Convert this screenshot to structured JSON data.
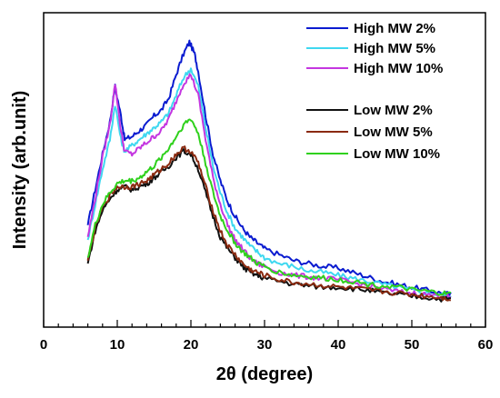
{
  "chart_data": {
    "type": "line",
    "xlabel": "2θ (degree)",
    "ylabel": "Intensity (arb.unit)",
    "xlim": [
      0,
      60
    ],
    "ylim": [
      0,
      1.0
    ],
    "xticks": [
      0,
      10,
      20,
      30,
      40,
      50,
      60
    ],
    "yticks_shown": false,
    "grid": false,
    "legend_position": "top-right",
    "series": [
      {
        "name": "High MW 2%",
        "color": "#0a1bd0",
        "x": [
          6,
          7,
          8,
          9,
          9.7,
          10.5,
          11,
          12,
          13,
          14,
          15,
          16,
          17,
          18,
          19,
          19.8,
          20.5,
          21,
          22,
          23,
          24,
          25,
          26,
          27,
          28,
          29,
          30,
          32,
          34,
          36,
          38,
          40,
          42,
          44,
          46,
          48,
          50,
          52,
          54,
          55.3
        ],
        "y": [
          0.33,
          0.45,
          0.57,
          0.68,
          0.8,
          0.7,
          0.62,
          0.63,
          0.65,
          0.67,
          0.7,
          0.72,
          0.76,
          0.84,
          0.91,
          0.95,
          0.91,
          0.85,
          0.7,
          0.57,
          0.48,
          0.41,
          0.36,
          0.32,
          0.29,
          0.27,
          0.25,
          0.23,
          0.21,
          0.2,
          0.19,
          0.185,
          0.17,
          0.155,
          0.14,
          0.13,
          0.12,
          0.11,
          0.1,
          0.095
        ]
      },
      {
        "name": "High MW 5%",
        "color": "#3fd8f0",
        "x": [
          6,
          7,
          8,
          9,
          9.7,
          10.5,
          11,
          12,
          13,
          14,
          15,
          16,
          17,
          18,
          19,
          20,
          21,
          22,
          23,
          24,
          25,
          26,
          27,
          28,
          29,
          30,
          32,
          34,
          36,
          38,
          40,
          42,
          44,
          46,
          48,
          50,
          52,
          54,
          55.3
        ],
        "y": [
          0.28,
          0.4,
          0.52,
          0.62,
          0.74,
          0.62,
          0.58,
          0.6,
          0.62,
          0.64,
          0.66,
          0.68,
          0.71,
          0.77,
          0.83,
          0.86,
          0.8,
          0.66,
          0.53,
          0.44,
          0.37,
          0.32,
          0.29,
          0.26,
          0.24,
          0.22,
          0.2,
          0.19,
          0.175,
          0.17,
          0.16,
          0.15,
          0.14,
          0.13,
          0.12,
          0.11,
          0.1,
          0.095,
          0.09
        ]
      },
      {
        "name": "High MW 10%",
        "color": "#c436e0",
        "x": [
          6,
          7,
          8,
          9,
          9.7,
          10.5,
          11,
          12,
          13,
          14,
          15,
          16,
          17,
          18,
          19,
          20,
          21,
          22,
          23,
          24,
          25,
          26,
          27,
          28,
          29,
          30,
          32,
          34,
          36,
          38,
          40,
          42,
          44,
          46,
          48,
          50,
          52,
          54,
          55.3
        ],
        "y": [
          0.29,
          0.42,
          0.56,
          0.67,
          0.81,
          0.65,
          0.58,
          0.57,
          0.59,
          0.61,
          0.63,
          0.65,
          0.69,
          0.75,
          0.81,
          0.84,
          0.77,
          0.62,
          0.49,
          0.4,
          0.33,
          0.28,
          0.25,
          0.22,
          0.2,
          0.19,
          0.17,
          0.16,
          0.155,
          0.15,
          0.145,
          0.135,
          0.125,
          0.115,
          0.105,
          0.1,
          0.095,
          0.09,
          0.085
        ]
      },
      {
        "name": "Low MW 2%",
        "color": "#111111",
        "x": [
          6,
          7,
          8,
          9,
          10,
          11,
          12,
          13,
          14,
          15,
          16,
          17,
          18,
          19,
          20,
          21,
          22,
          23,
          24,
          25,
          26,
          27,
          28,
          29,
          30,
          32,
          34,
          36,
          38,
          40,
          42,
          44,
          46,
          48,
          50,
          52,
          54,
          55.3
        ],
        "y": [
          0.2,
          0.31,
          0.38,
          0.42,
          0.45,
          0.46,
          0.45,
          0.46,
          0.47,
          0.49,
          0.51,
          0.53,
          0.56,
          0.58,
          0.57,
          0.52,
          0.44,
          0.36,
          0.29,
          0.25,
          0.22,
          0.19,
          0.17,
          0.16,
          0.15,
          0.14,
          0.13,
          0.125,
          0.12,
          0.12,
          0.115,
          0.11,
          0.1,
          0.095,
          0.09,
          0.085,
          0.08,
          0.08
        ]
      },
      {
        "name": "Low MW 5%",
        "color": "#8a2a10",
        "x": [
          6,
          7,
          8,
          9,
          10,
          11,
          12,
          13,
          14,
          15,
          16,
          17,
          18,
          19,
          20,
          21,
          22,
          23,
          24,
          25,
          26,
          27,
          28,
          29,
          30,
          32,
          34,
          36,
          38,
          40,
          42,
          44,
          46,
          48,
          50,
          52,
          54,
          55.3
        ],
        "y": [
          0.21,
          0.32,
          0.39,
          0.43,
          0.46,
          0.46,
          0.46,
          0.47,
          0.48,
          0.5,
          0.52,
          0.54,
          0.57,
          0.59,
          0.58,
          0.54,
          0.46,
          0.38,
          0.31,
          0.26,
          0.23,
          0.2,
          0.18,
          0.17,
          0.16,
          0.145,
          0.135,
          0.13,
          0.125,
          0.12,
          0.115,
          0.11,
          0.105,
          0.1,
          0.095,
          0.09,
          0.085,
          0.08
        ]
      },
      {
        "name": "Low MW 10%",
        "color": "#2fd11c",
        "x": [
          6,
          7,
          8,
          9,
          10,
          11,
          12,
          13,
          14,
          15,
          16,
          17,
          18,
          19,
          20,
          21,
          22,
          23,
          24,
          25,
          26,
          27,
          28,
          29,
          30,
          32,
          34,
          36,
          38,
          40,
          42,
          44,
          46,
          48,
          50,
          52,
          54,
          55.3
        ],
        "y": [
          0.22,
          0.33,
          0.4,
          0.44,
          0.47,
          0.48,
          0.48,
          0.49,
          0.51,
          0.53,
          0.56,
          0.59,
          0.63,
          0.67,
          0.69,
          0.64,
          0.54,
          0.44,
          0.36,
          0.31,
          0.27,
          0.24,
          0.22,
          0.2,
          0.19,
          0.17,
          0.16,
          0.155,
          0.15,
          0.145,
          0.14,
          0.13,
          0.125,
          0.12,
          0.11,
          0.105,
          0.1,
          0.095
        ]
      }
    ]
  }
}
